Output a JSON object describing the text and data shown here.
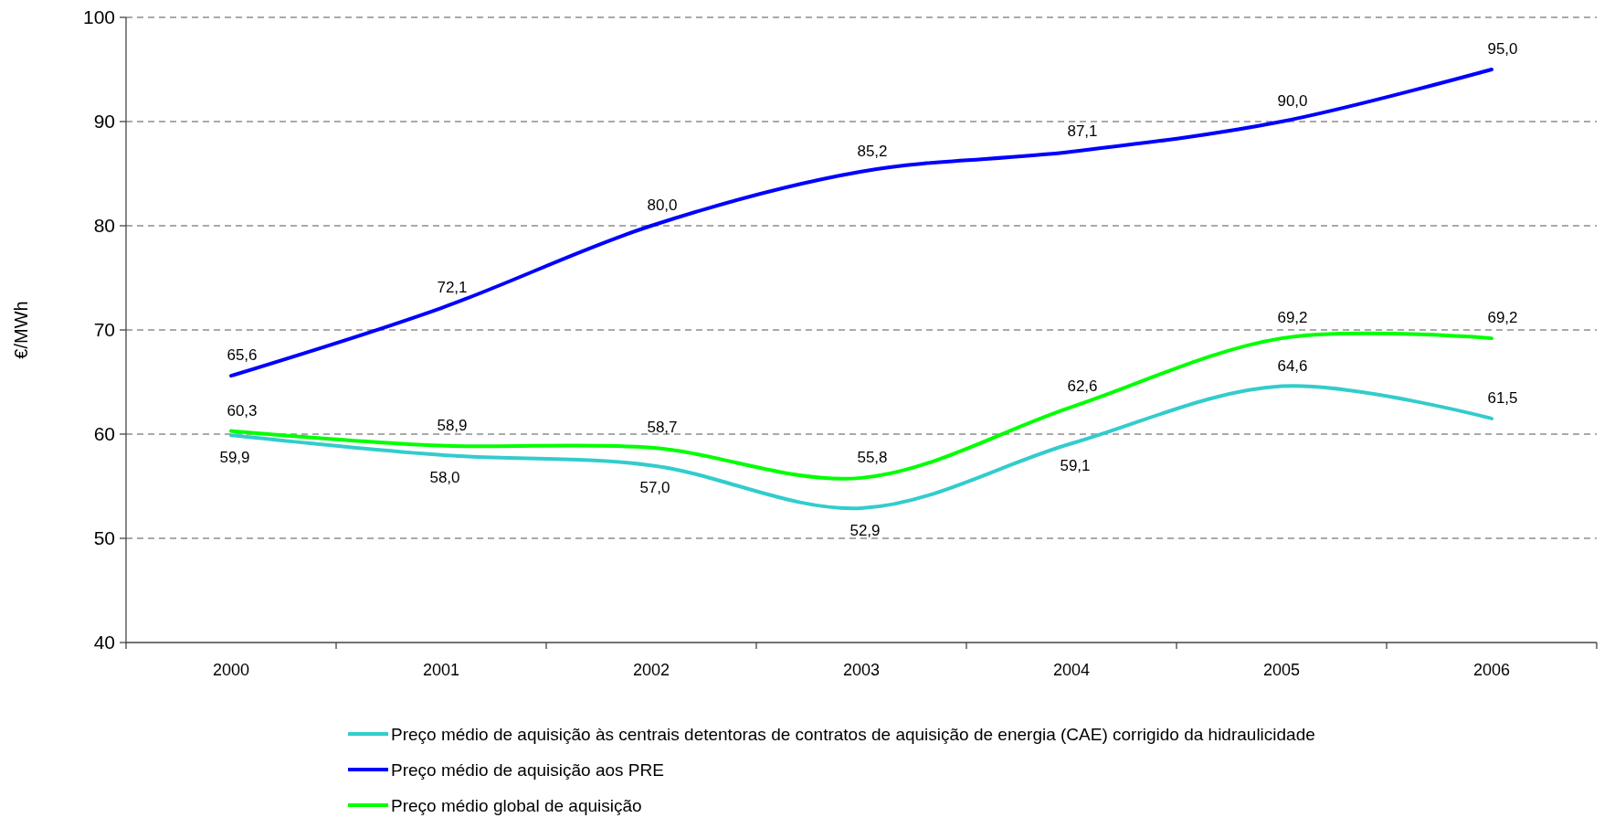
{
  "chart_data": {
    "type": "line",
    "ylabel": "€/MWh",
    "categories": [
      "2000",
      "2001",
      "2002",
      "2003",
      "2004",
      "2005",
      "2006"
    ],
    "series": [
      {
        "name": "Preço médio de aquisição às centrais detentoras de contratos de aquisição de energia (CAE) corrigido da hidraulicidade",
        "color": "#33cccc",
        "values": [
          59.9,
          58.0,
          57.0,
          52.9,
          59.1,
          64.6,
          61.5
        ],
        "value_labels": [
          "59,9",
          "58,0",
          "57,0",
          "52,9",
          "59,1",
          "64,6",
          "61,5"
        ]
      },
      {
        "name": "Preço médio de aquisição aos PRE",
        "color": "#0000ff",
        "values": [
          65.6,
          72.1,
          80.0,
          85.2,
          87.1,
          90.0,
          95.0
        ],
        "value_labels": [
          "65,6",
          "72,1",
          "80,0",
          "85,2",
          "87,1",
          "90,0",
          "95,0"
        ]
      },
      {
        "name": "Preço médio global de aquisição",
        "color": "#00ff00",
        "values": [
          60.3,
          58.9,
          58.7,
          55.8,
          62.6,
          69.2,
          69.2
        ],
        "value_labels": [
          "60,3",
          "58,9",
          "58,7",
          "55,8",
          "62,6",
          "69,2",
          "69,2"
        ]
      }
    ],
    "ylim": [
      40,
      100
    ],
    "yticks": [
      40,
      50,
      60,
      70,
      80,
      90,
      100
    ],
    "grid": "y",
    "legend": "bottom"
  }
}
